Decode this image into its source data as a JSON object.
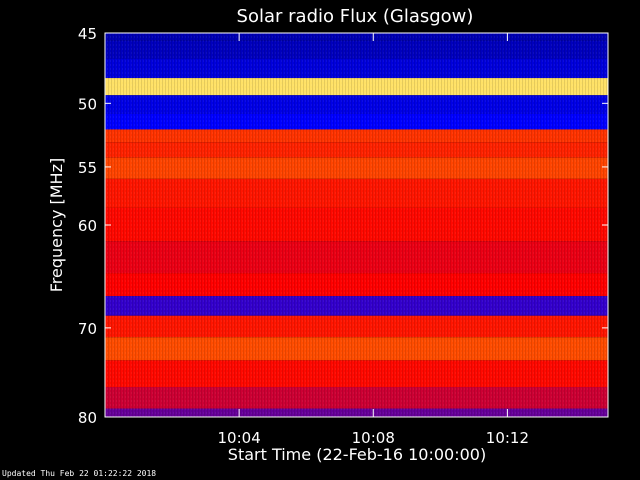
{
  "chart_data": {
    "type": "heatmap",
    "title": "Solar radio Flux (Glasgow)",
    "xlabel": "Start Time (22-Feb-16 10:00:00)",
    "ylabel": "Frequency [MHz]",
    "x_tick_labels": [
      "10:04",
      "10:08",
      "10:12"
    ],
    "x_ticks_minutes": [
      4,
      8,
      12
    ],
    "xlim_minutes": [
      0,
      15
    ],
    "y_tick_labels": [
      "45",
      "50",
      "55",
      "60",
      "70",
      "80"
    ],
    "y_ticks": [
      45,
      50,
      55,
      60,
      70,
      80
    ],
    "ylim": [
      45,
      80
    ],
    "y_scale": "log",
    "y_direction": "increasing downward",
    "colormap": [
      "#000080",
      "#0000ff",
      "#ff0000",
      "#ff6a00",
      "#ffff80"
    ],
    "intensity_by_frequency": [
      {
        "mhz": 45.0,
        "level": 0.1
      },
      {
        "mhz": 46.0,
        "level": 0.12
      },
      {
        "mhz": 47.5,
        "level": 0.18
      },
      {
        "mhz": 48.8,
        "level": 0.95
      },
      {
        "mhz": 50.0,
        "level": 0.2
      },
      {
        "mhz": 51.5,
        "level": 0.25
      },
      {
        "mhz": 52.5,
        "level": 0.62
      },
      {
        "mhz": 53.5,
        "level": 0.58
      },
      {
        "mhz": 55.0,
        "level": 0.66
      },
      {
        "mhz": 57.0,
        "level": 0.55
      },
      {
        "mhz": 60.0,
        "level": 0.52
      },
      {
        "mhz": 63.0,
        "level": 0.48
      },
      {
        "mhz": 66.0,
        "level": 0.5
      },
      {
        "mhz": 67.5,
        "level": 0.3
      },
      {
        "mhz": 70.0,
        "level": 0.55
      },
      {
        "mhz": 72.0,
        "level": 0.68
      },
      {
        "mhz": 75.0,
        "level": 0.52
      },
      {
        "mhz": 78.0,
        "level": 0.45
      },
      {
        "mhz": 80.0,
        "level": 0.35
      }
    ]
  },
  "footer": {
    "updated_text": "Updated Thu Feb 22 01:22:22 2018"
  }
}
